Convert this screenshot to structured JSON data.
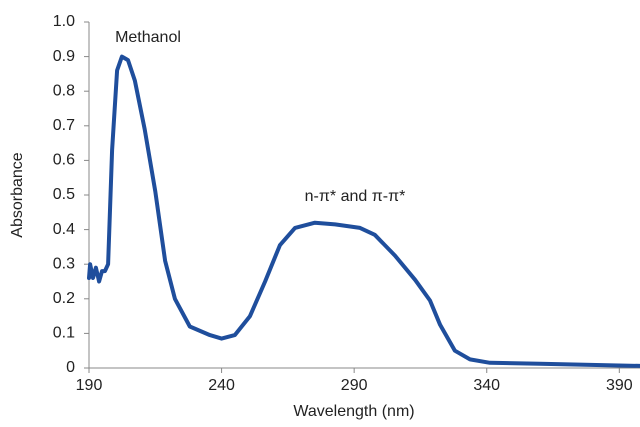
{
  "chart_data": {
    "type": "line",
    "x_label": "Wavelength (nm)",
    "y_label": "Absorbance",
    "annotations": [
      "Methanol",
      "n-π* and π-π*"
    ],
    "x": [
      190,
      190.4,
      191.5,
      192.6,
      193.8,
      194.9,
      196,
      197.2,
      198.7,
      200.6,
      202.4,
      204.7,
      207.3,
      211,
      215,
      218.7,
      222.4,
      228,
      235.6,
      240,
      245,
      250.7,
      256.4,
      262,
      267.7,
      275.2,
      282.8,
      292.2,
      297.8,
      305.4,
      313,
      318.6,
      322.4,
      328,
      333.7,
      341.2,
      360,
      397.8
    ],
    "series": [
      {
        "color": "#1f4e9c",
        "values": [
          0.26,
          0.3,
          0.26,
          0.29,
          0.25,
          0.28,
          0.28,
          0.3,
          0.63,
          0.86,
          0.9,
          0.89,
          0.83,
          0.69,
          0.51,
          0.31,
          0.2,
          0.12,
          0.095,
          0.085,
          0.095,
          0.15,
          0.25,
          0.355,
          0.405,
          0.42,
          0.415,
          0.405,
          0.385,
          0.325,
          0.255,
          0.195,
          0.125,
          0.05,
          0.025,
          0.015,
          0.012,
          0.006
        ]
      }
    ],
    "xlim": [
      190,
      397.8
    ],
    "ylim": [
      0,
      1
    ],
    "xticks": [
      190,
      240,
      290,
      340,
      390
    ],
    "yticks": [
      0,
      0.1,
      0.2,
      0.3,
      0.4,
      0.5,
      0.6,
      0.7,
      0.8,
      0.9,
      {
        "value": 1,
        "label": "1.0"
      }
    ]
  }
}
